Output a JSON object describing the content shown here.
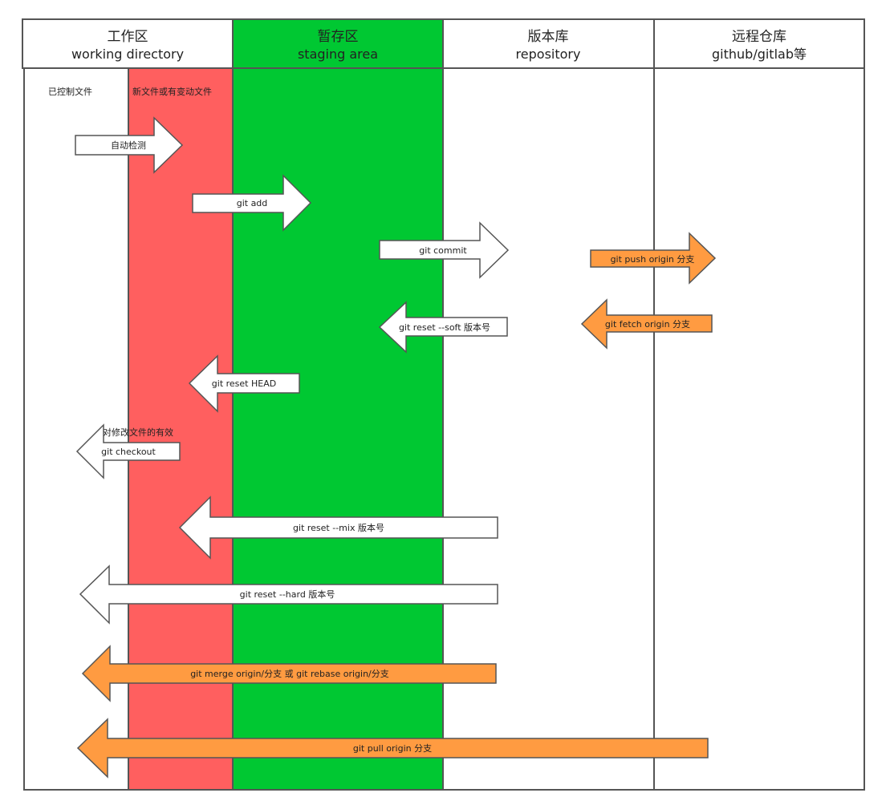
{
  "columns": [
    {
      "title": "工作区",
      "subtitle": "working directory"
    },
    {
      "title": "暂存区",
      "subtitle": "staging area"
    },
    {
      "title": "版本库",
      "subtitle": "repository"
    },
    {
      "title": "远程仓库",
      "subtitle": "github/gitlab等"
    }
  ],
  "zones": {
    "tracked": "已控制文件",
    "new_or_changed": "新文件或有变动文件"
  },
  "arrows": {
    "auto_detect": "自动检测",
    "git_add": "git add",
    "git_commit": "git commit",
    "git_push": "git push origin 分支",
    "git_reset_soft": "git reset --soft 版本号",
    "git_fetch": "git fetch origin  分支",
    "git_reset_head": "git reset HEAD",
    "checkout_note": "对修改文件的有效",
    "git_checkout": "git checkout",
    "git_reset_mix": "git reset --mix 版本号",
    "git_reset_hard": "git reset --hard 版本号",
    "git_merge": "git merge origin/分支 或 git rebase origin/分支",
    "git_pull": "git pull origin  分支"
  },
  "colors": {
    "staging_green": "#00c832",
    "changed_red": "#ff5f5f",
    "remote_orange": "#ff9b41",
    "outline": "#555555"
  }
}
